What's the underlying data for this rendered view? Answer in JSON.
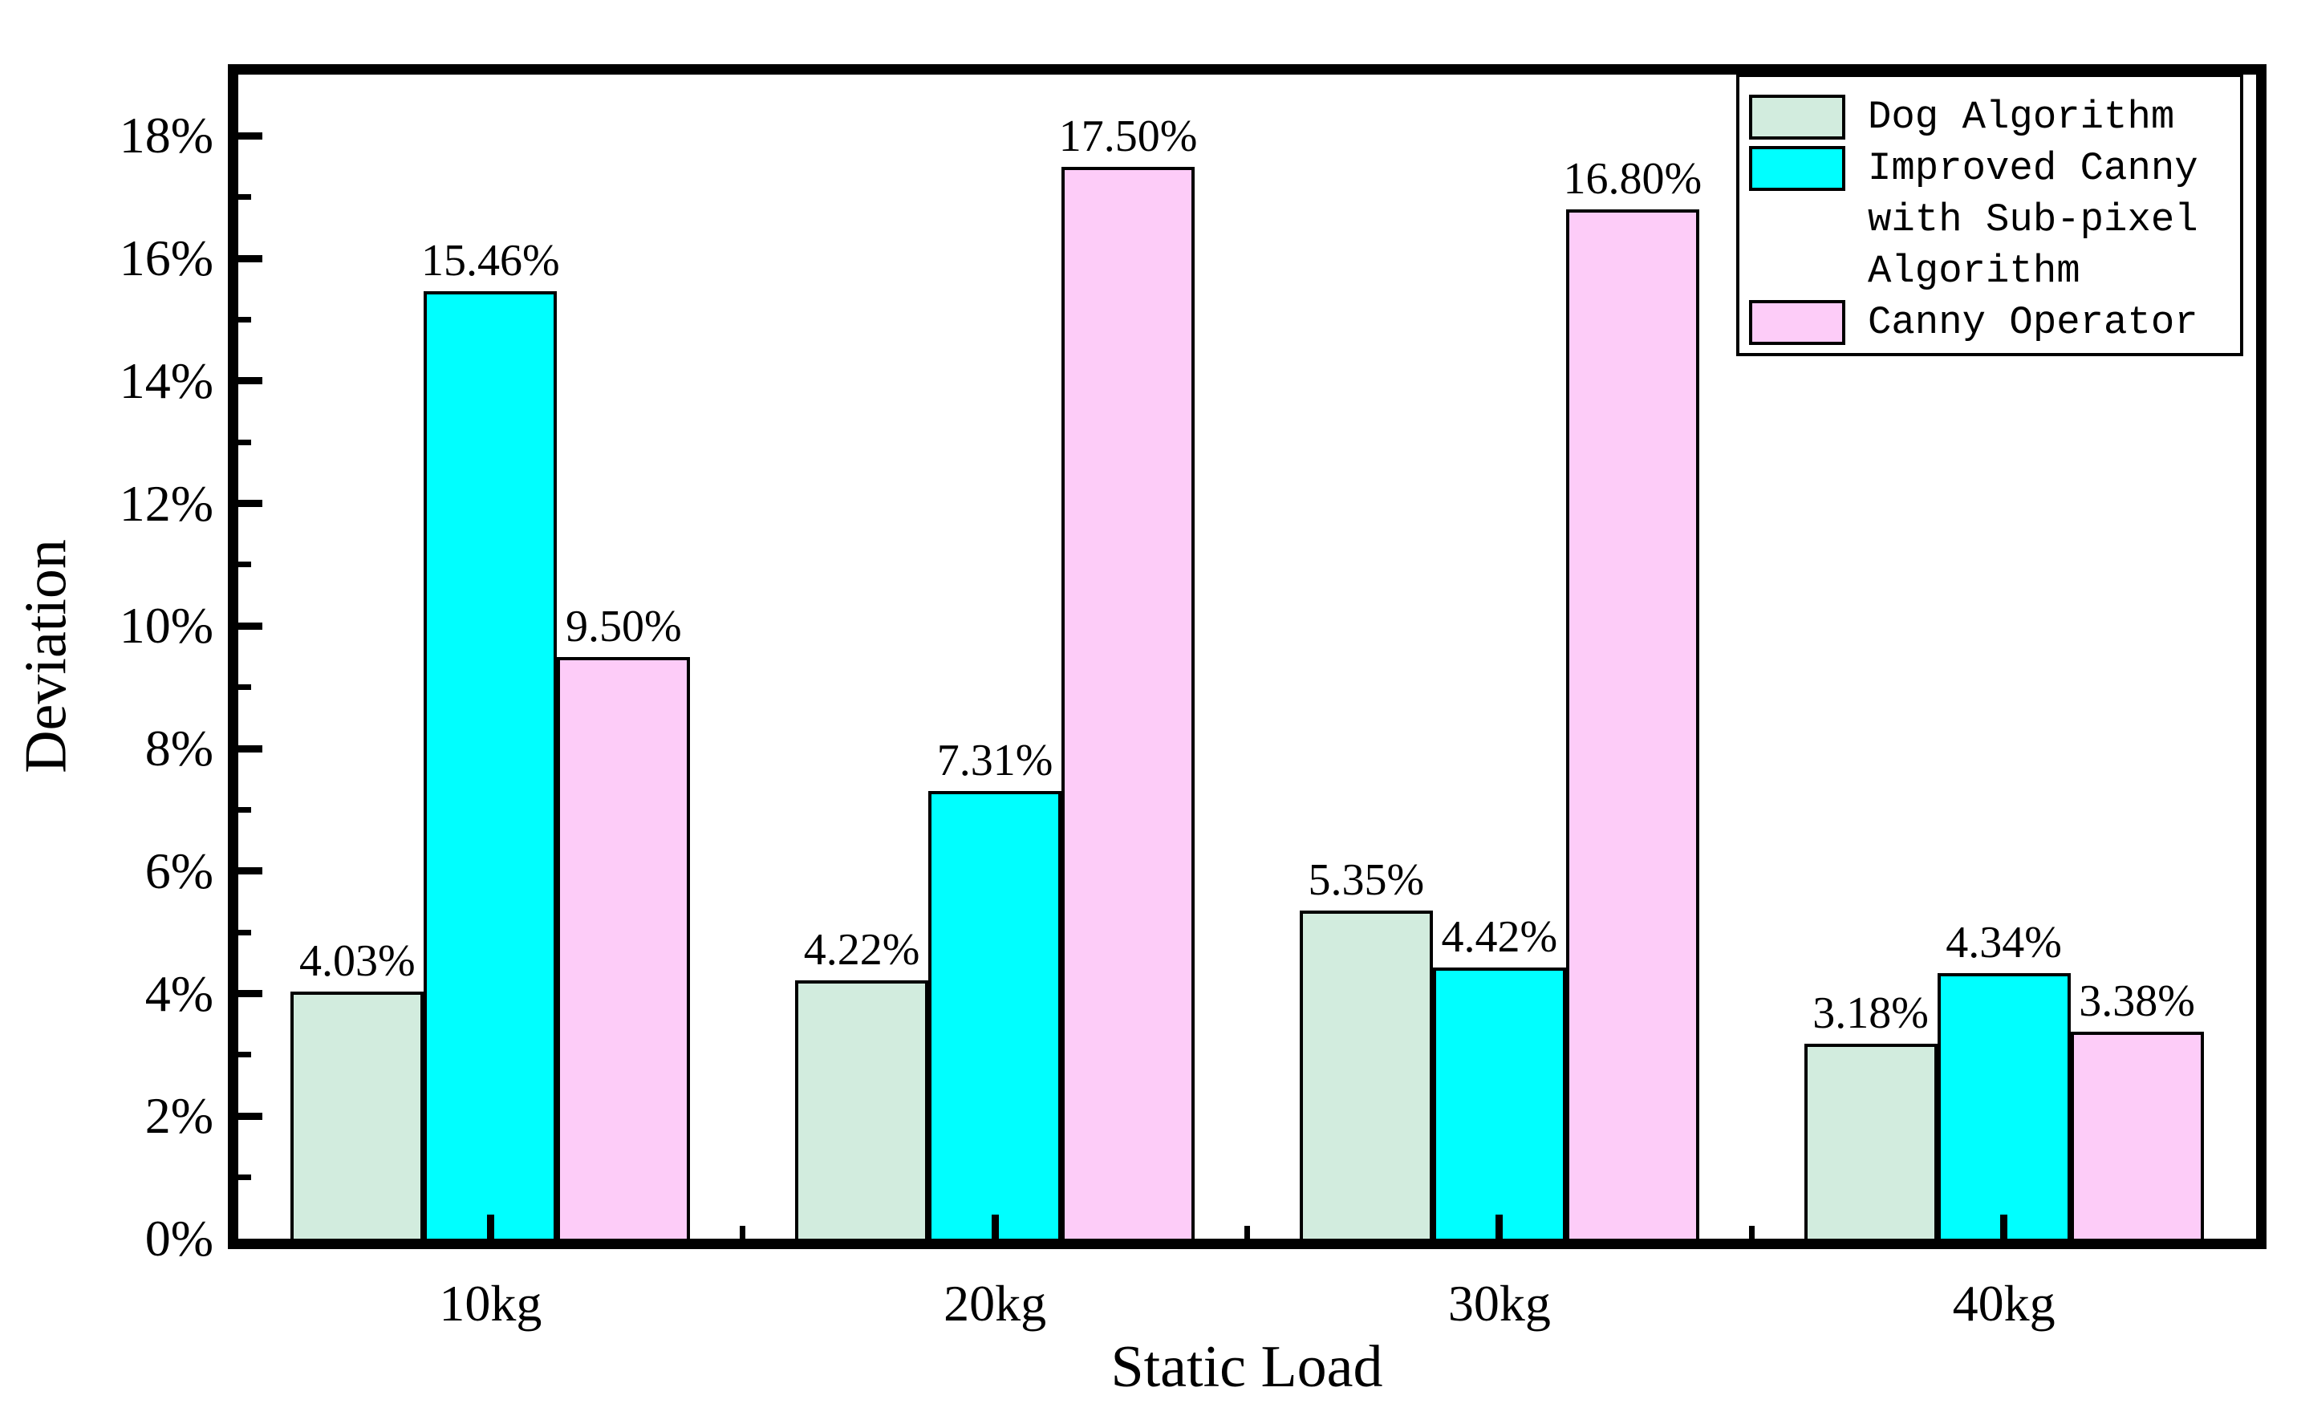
{
  "chart_data": {
    "type": "bar",
    "title": "",
    "xlabel": "Static Load",
    "ylabel": "Deviation",
    "categories": [
      "10kg",
      "20kg",
      "30kg",
      "40kg"
    ],
    "series": [
      {
        "name": "Dog Algorithm",
        "color": "#d2ecde",
        "values": [
          4.03,
          4.22,
          5.35,
          3.18
        ],
        "data_labels": [
          "4.03%",
          "4.22%",
          "5.35%",
          "3.18%"
        ]
      },
      {
        "name": "Improved Canny with Sub-pixel Algorithm",
        "color": "#00ffff",
        "values": [
          15.46,
          7.31,
          4.42,
          4.34
        ],
        "data_labels": [
          "15.46%",
          "7.31%",
          "4.42%",
          "4.34%"
        ]
      },
      {
        "name": "Canny Operator",
        "color": "#fdccf8",
        "values": [
          9.5,
          17.5,
          16.8,
          3.38
        ],
        "data_labels": [
          "9.50%",
          "17.50%",
          "16.80%",
          "3.38%"
        ]
      }
    ],
    "ylim": [
      0,
      19
    ],
    "ytick_major_values": [
      0,
      2,
      4,
      6,
      8,
      10,
      12,
      14,
      16,
      18
    ],
    "ytick_labels": [
      "0%",
      "2%",
      "4%",
      "6%",
      "8%",
      "10%",
      "12%",
      "14%",
      "16%",
      "18%"
    ],
    "ytick_minor_values": [
      1,
      3,
      5,
      7,
      9,
      11,
      13,
      15,
      17
    ],
    "grid": false,
    "legend_position": "top-right",
    "axis_color": "#000000",
    "bar_outline_color": "#000000"
  },
  "legend": {
    "entries": [
      {
        "lines": [
          "Dog Algorithm"
        ],
        "color": "#d2ecde"
      },
      {
        "lines": [
          "Improved Canny",
          "with Sub-pixel",
          "Algorithm"
        ],
        "color": "#00ffff"
      },
      {
        "lines": [
          "Canny Operator"
        ],
        "color": "#fdccf8"
      }
    ]
  }
}
